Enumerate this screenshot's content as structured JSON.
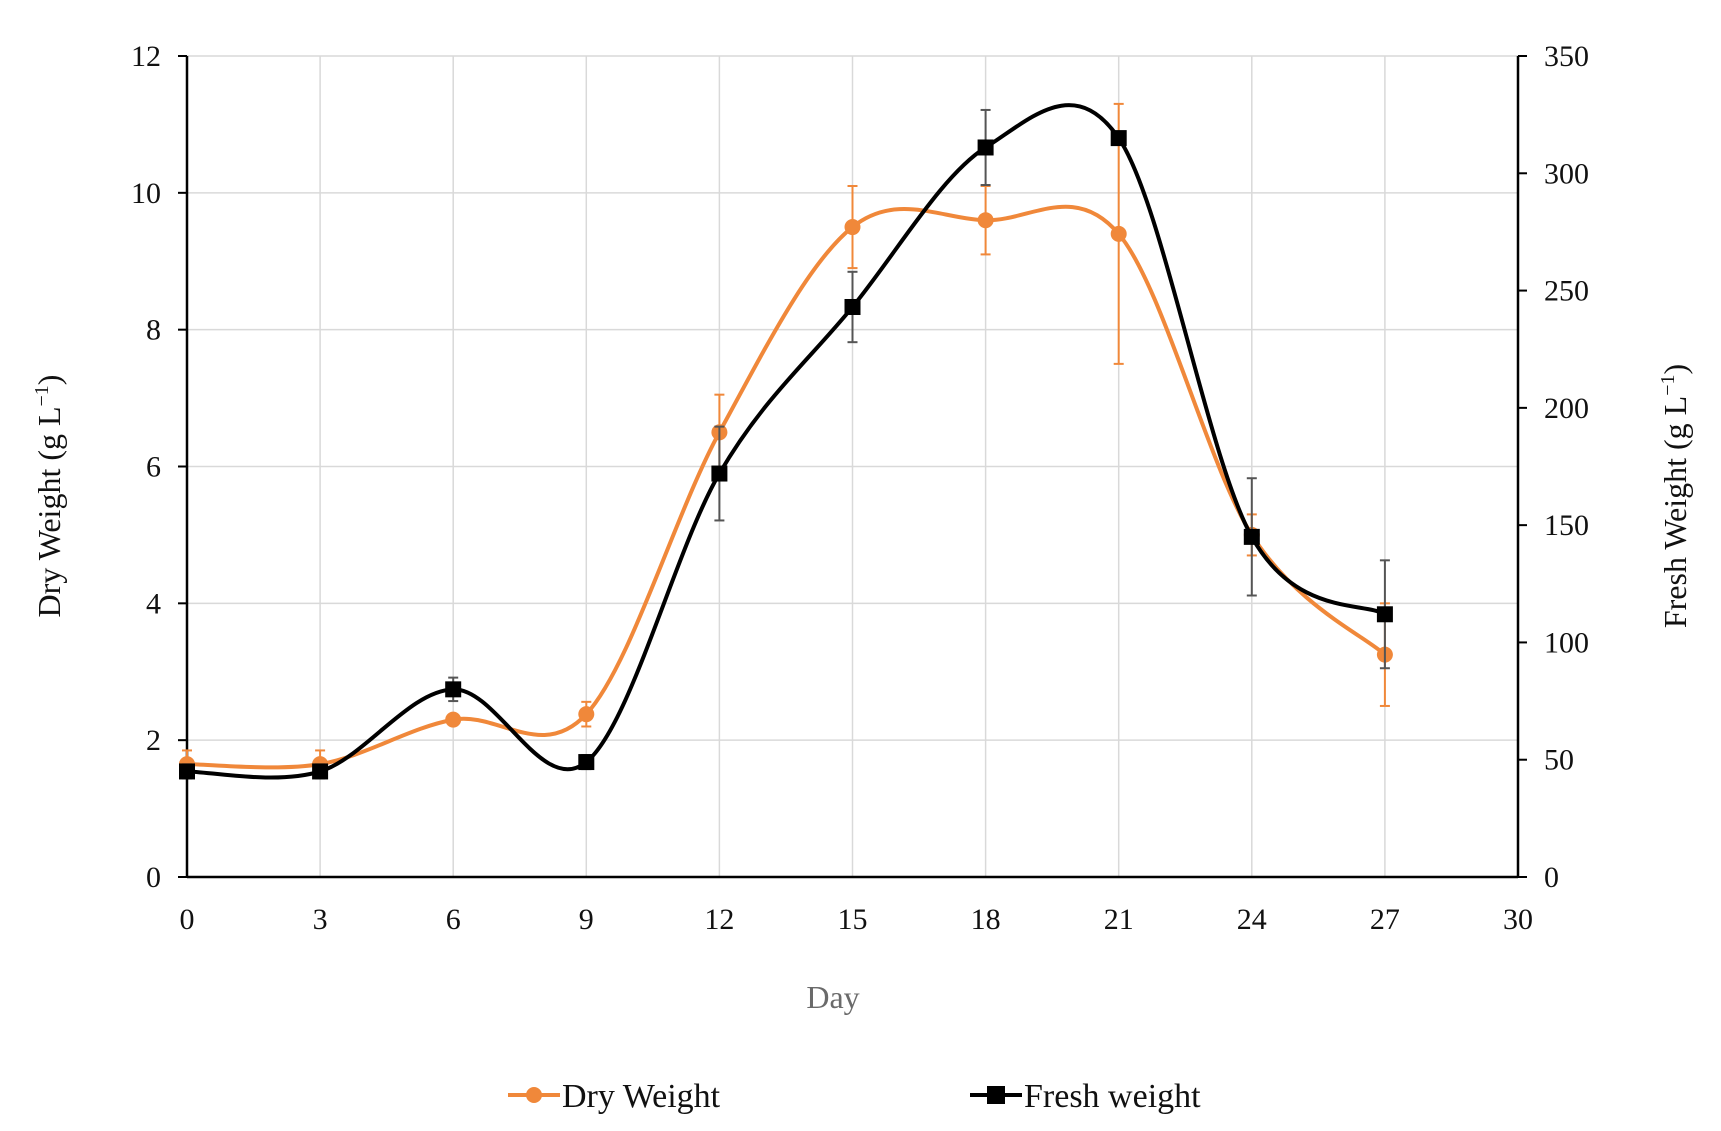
{
  "chart_data": {
    "type": "line",
    "title": "",
    "xlabel": "Day",
    "ylabel": "Dry Weight (g L",
    "ylabel_sup": "−1",
    "ylabel_close": ")",
    "y2label": "Fresh Weight (g L",
    "y2label_sup": "−1",
    "y2label_close": ")",
    "xlim": [
      0,
      30
    ],
    "ylim": [
      0,
      12
    ],
    "y2lim": [
      0,
      350
    ],
    "xticks": [
      "0",
      "3",
      "6",
      "9",
      "12",
      "15",
      "18",
      "21",
      "24",
      "27",
      "30"
    ],
    "yticks": [
      "0",
      "2",
      "4",
      "6",
      "8",
      "10",
      "12"
    ],
    "y2ticks": [
      "0",
      "50",
      "100",
      "150",
      "200",
      "250",
      "300",
      "350"
    ],
    "grid": true,
    "legend_position": "bottom",
    "series": [
      {
        "name": "Dry Weight",
        "axis": "left",
        "color": "#f0883a",
        "marker": "circle",
        "x": [
          0,
          3,
          6,
          9,
          12,
          15,
          18,
          21,
          24,
          27
        ],
        "y": [
          1.65,
          1.65,
          2.3,
          2.38,
          6.5,
          9.5,
          9.6,
          9.4,
          5.0,
          3.25
        ],
        "error": [
          0.2,
          0.2,
          0.0,
          0.18,
          0.55,
          0.6,
          0.5,
          1.9,
          0.3,
          0.75
        ]
      },
      {
        "name": "Fresh weight",
        "axis": "right",
        "color": "#000000",
        "marker": "square",
        "x": [
          0,
          3,
          6,
          9,
          12,
          15,
          18,
          21,
          24,
          27
        ],
        "y": [
          45,
          45,
          80,
          49,
          172,
          243,
          311,
          315,
          145,
          112
        ],
        "error": [
          3,
          3,
          5,
          3,
          20,
          15,
          16,
          0,
          25,
          23
        ]
      }
    ]
  }
}
